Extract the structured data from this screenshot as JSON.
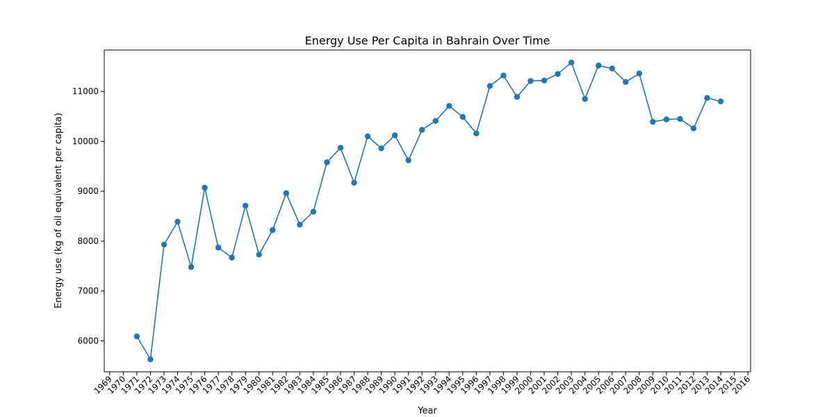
{
  "chart_data": {
    "type": "line",
    "title": "Energy Use Per Capita in Bahrain Over Time",
    "xlabel": "Year",
    "ylabel": "Energy use (kg of oil equivalent per capita)",
    "xlim": [
      1968.6,
      2016.2
    ],
    "ylim": [
      5380,
      11830
    ],
    "xticks": [
      1969,
      1970,
      1971,
      1972,
      1973,
      1974,
      1975,
      1976,
      1977,
      1978,
      1979,
      1980,
      1981,
      1982,
      1983,
      1984,
      1985,
      1986,
      1987,
      1988,
      1989,
      1990,
      1991,
      1992,
      1993,
      1994,
      1995,
      1996,
      1997,
      1998,
      1999,
      2000,
      2001,
      2002,
      2003,
      2004,
      2005,
      2006,
      2007,
      2008,
      2009,
      2010,
      2011,
      2012,
      2013,
      2014,
      2015,
      2016
    ],
    "yticks": [
      6000,
      7000,
      8000,
      9000,
      10000,
      11000
    ],
    "grid": false,
    "color": "#1f77b4",
    "series": [
      {
        "x": [
          1971,
          1972,
          1973,
          1974,
          1975,
          1976,
          1977,
          1978,
          1979,
          1980,
          1981,
          1982,
          1983,
          1984,
          1985,
          1986,
          1987,
          1988,
          1989,
          1990,
          1991,
          1992,
          1993,
          1994,
          1995,
          1996,
          1997,
          1998,
          1999,
          2000,
          2001,
          2002,
          2003,
          2004,
          2005,
          2006,
          2007,
          2008,
          2009,
          2010,
          2011,
          2012,
          2013,
          2014
        ],
        "values": [
          6090,
          5630,
          7930,
          8390,
          7480,
          9070,
          7870,
          7670,
          8710,
          7730,
          8220,
          8960,
          8330,
          8590,
          9580,
          9870,
          9170,
          10100,
          9860,
          10120,
          9620,
          10230,
          10410,
          10710,
          10490,
          10160,
          11110,
          11320,
          10890,
          11210,
          11220,
          11350,
          11580,
          10850,
          11520,
          11460,
          11190,
          11360,
          10390,
          10440,
          10450,
          10260,
          10870,
          10800
        ]
      }
    ]
  }
}
